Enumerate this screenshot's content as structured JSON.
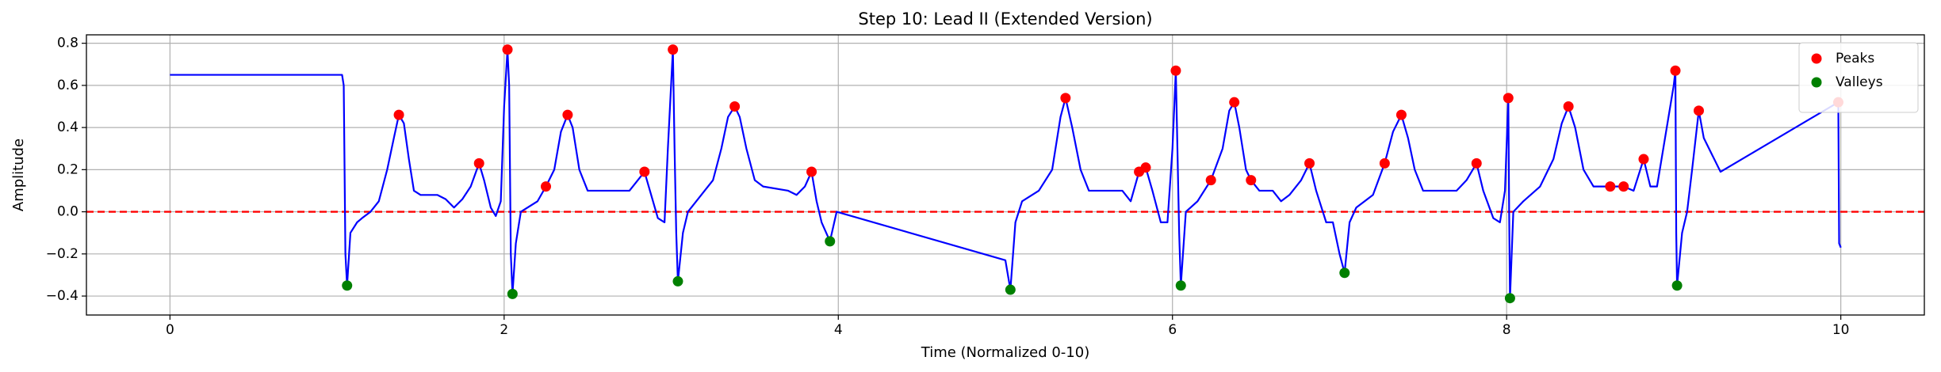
{
  "chart_data": {
    "type": "line",
    "title": "Step 10: Lead II (Extended Version)",
    "x_label": "Time (Normalized 0-10)",
    "y_label": "Amplitude",
    "xlim": [
      -0.5,
      10.5
    ],
    "ylim": [
      -0.49,
      0.84
    ],
    "xticks": [
      0,
      2,
      4,
      6,
      8,
      10
    ],
    "yticks": [
      {
        "value": -0.4,
        "label": "−0.4"
      },
      {
        "value": -0.2,
        "label": "−0.2"
      },
      {
        "value": 0,
        "label": "0.0"
      },
      {
        "value": 0.2,
        "label": "0.2"
      },
      {
        "value": 0.4,
        "label": "0.4"
      },
      {
        "value": 0.6,
        "label": "0.6"
      },
      {
        "value": 0.8,
        "label": "0.8"
      }
    ],
    "grid": true,
    "legend": "upper right",
    "reference_line": {
      "value": 0,
      "color": "#ff0000",
      "dashed": true
    },
    "line": {
      "color": "#0000ff",
      "x": [
        0,
        1.03,
        1.04,
        1.05,
        1.06,
        1.08,
        1.12,
        1.15,
        1.2,
        1.25,
        1.3,
        1.34,
        1.37,
        1.4,
        1.43,
        1.46,
        1.5,
        1.6,
        1.65,
        1.7,
        1.75,
        1.8,
        1.85,
        1.88,
        1.92,
        1.95,
        1.98,
        2,
        2.02,
        2.03,
        2.04,
        2.05,
        2.07,
        2.1,
        2.2,
        2.25,
        2.3,
        2.34,
        2.38,
        2.41,
        2.45,
        2.5,
        2.7,
        2.75,
        2.8,
        2.84,
        2.88,
        2.92,
        2.96,
        2.98,
        3.01,
        3.02,
        3.03,
        3.04,
        3.07,
        3.1,
        3.2,
        3.25,
        3.3,
        3.34,
        3.38,
        3.41,
        3.45,
        3.5,
        3.55,
        3.7,
        3.75,
        3.8,
        3.84,
        3.87,
        3.9,
        3.95,
        3.99,
        5,
        5.03,
        5.06,
        5.1,
        5.2,
        5.28,
        5.33,
        5.36,
        5.4,
        5.45,
        5.5,
        5.7,
        5.75,
        5.8,
        5.84,
        5.88,
        5.93,
        5.97,
        6,
        6.02,
        6.04,
        6.05,
        6.08,
        6.15,
        6.23,
        6.3,
        6.34,
        6.37,
        6.4,
        6.44,
        6.47,
        6.52,
        6.6,
        6.65,
        6.7,
        6.77,
        6.82,
        6.86,
        6.92,
        6.96,
        7,
        7.03,
        7.06,
        7.1,
        7.2,
        7.27,
        7.32,
        7.37,
        7.41,
        7.45,
        7.5,
        7.7,
        7.76,
        7.82,
        7.86,
        7.92,
        7.96,
        7.99,
        8.01,
        8.015,
        8.02,
        8.04,
        8.1,
        8.2,
        8.28,
        8.33,
        8.37,
        8.41,
        8.46,
        8.52,
        8.7,
        8.76,
        8.82,
        8.86,
        8.9,
        9,
        9.01,
        9.015,
        9.02,
        9.05,
        9.08,
        9.11,
        9.15,
        9.18,
        9.28,
        9.985,
        9.99,
        10
      ],
      "values": [
        0.65,
        0.65,
        0.6,
        -0.2,
        -0.35,
        -0.1,
        -0.05,
        -0.03,
        0,
        0.05,
        0.2,
        0.35,
        0.46,
        0.42,
        0.25,
        0.1,
        0.08,
        0.08,
        0.06,
        0.02,
        0.06,
        0.12,
        0.23,
        0.15,
        0.02,
        -0.02,
        0.05,
        0.5,
        0.77,
        0.6,
        -0.2,
        -0.39,
        -0.15,
        0,
        0.05,
        0.12,
        0.2,
        0.38,
        0.46,
        0.4,
        0.2,
        0.1,
        0.1,
        0.1,
        0.15,
        0.19,
        0.08,
        -0.03,
        -0.05,
        0.3,
        0.77,
        0.3,
        -0.1,
        -0.33,
        -0.1,
        0,
        0.1,
        0.15,
        0.3,
        0.45,
        0.5,
        0.45,
        0.3,
        0.15,
        0.12,
        0.1,
        0.08,
        0.12,
        0.19,
        0.05,
        -0.05,
        -0.14,
        0,
        -0.23,
        -0.37,
        -0.05,
        0.05,
        0.1,
        0.2,
        0.45,
        0.54,
        0.4,
        0.2,
        0.1,
        0.1,
        0.05,
        0.19,
        0.21,
        0.1,
        -0.05,
        -0.05,
        0.3,
        0.67,
        -0.1,
        -0.35,
        0,
        0.05,
        0.15,
        0.3,
        0.48,
        0.52,
        0.4,
        0.2,
        0.15,
        0.1,
        0.1,
        0.05,
        0.08,
        0.15,
        0.23,
        0.1,
        -0.05,
        -0.05,
        -0.2,
        -0.29,
        -0.05,
        0.02,
        0.08,
        0.23,
        0.38,
        0.46,
        0.35,
        0.2,
        0.1,
        0.1,
        0.15,
        0.23,
        0.1,
        -0.03,
        -0.05,
        0.1,
        0.54,
        0,
        -0.41,
        0,
        0.05,
        0.12,
        0.25,
        0.42,
        0.5,
        0.4,
        0.2,
        0.12,
        0.12,
        0.1,
        0.25,
        0.12,
        0.12,
        0.6,
        0.67,
        -0.1,
        -0.35,
        -0.1,
        0,
        0.2,
        0.48,
        0.35,
        0.19,
        0.52,
        -0.15,
        -0.17
      ]
    },
    "series": [
      {
        "name": "Peaks",
        "color": "#ff0000",
        "x": [
          1.37,
          1.85,
          2.02,
          2.25,
          2.38,
          2.84,
          3.01,
          3.38,
          3.84,
          5.36,
          5.8,
          5.84,
          6.02,
          6.23,
          6.37,
          6.47,
          6.82,
          7.27,
          7.37,
          7.82,
          8.01,
          8.37,
          8.62,
          8.7,
          8.82,
          9.01,
          9.15,
          9.985
        ],
        "values": [
          0.46,
          0.23,
          0.77,
          0.12,
          0.46,
          0.19,
          0.77,
          0.5,
          0.19,
          0.54,
          0.19,
          0.21,
          0.67,
          0.15,
          0.52,
          0.15,
          0.23,
          0.23,
          0.46,
          0.23,
          0.54,
          0.5,
          0.12,
          0.12,
          0.25,
          0.67,
          0.48,
          0.52
        ]
      },
      {
        "name": "Valleys",
        "color": "#008000",
        "x": [
          1.06,
          2.05,
          3.04,
          3.95,
          5.03,
          6.05,
          7.03,
          8.02,
          9.02
        ],
        "values": [
          -0.35,
          -0.39,
          -0.33,
          -0.14,
          -0.37,
          -0.35,
          -0.29,
          -0.41,
          -0.35
        ]
      }
    ]
  }
}
